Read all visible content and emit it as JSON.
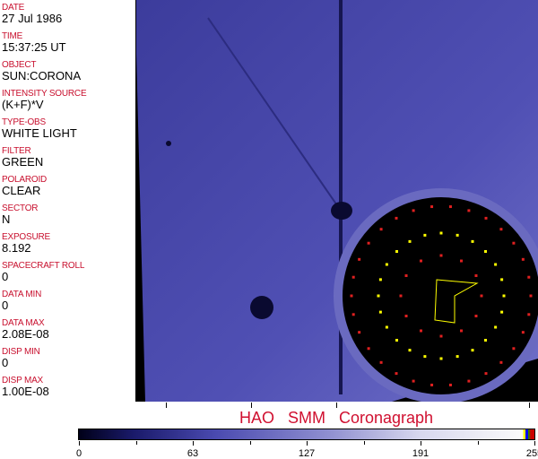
{
  "fields": [
    {
      "label": "DATE",
      "value": "27 Jul 1986"
    },
    {
      "label": "TIME",
      "value": "15:37:25 UT"
    },
    {
      "label": "OBJECT",
      "value": "SUN:CORONA"
    },
    {
      "label": "INTENSITY SOURCE",
      "value": "(K+F)*V"
    },
    {
      "label": "TYPE-OBS",
      "value": "WHITE LIGHT"
    },
    {
      "label": "FILTER",
      "value": "GREEN"
    },
    {
      "label": "POLAROID",
      "value": "CLEAR"
    },
    {
      "label": "SECTOR",
      "value": "N"
    },
    {
      "label": "EXPOSURE",
      "value": "8.192"
    },
    {
      "label": "SPACECRAFT ROLL",
      "value": "0"
    },
    {
      "label": "DATA MIN",
      "value": "0"
    },
    {
      "label": "DATA MAX",
      "value": "2.08E-08"
    },
    {
      "label": "DISP MIN",
      "value": "0"
    },
    {
      "label": "DISP MAX",
      "value": "1.00E-08"
    }
  ],
  "title": "HAO  SMM Coronagraph",
  "colorbar": {
    "ticks": [
      "0",
      "63",
      "127",
      "191",
      "255"
    ],
    "colormap": [
      "#000018",
      "#4a4ab0",
      "#fafafa"
    ]
  },
  "colors": {
    "label": "#c8102e",
    "image_blue": "#4848a8"
  }
}
